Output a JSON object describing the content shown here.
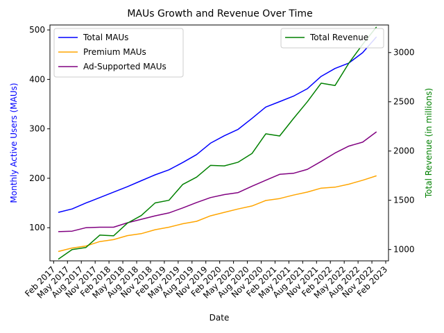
{
  "chart_data": {
    "type": "line",
    "title": "MAUs Growth and Revenue Over Time",
    "xlabel": "Date",
    "ylabel_left": "Monthly Active Users (MAUs)",
    "ylabel_right": "Total Revenue (in millions)",
    "x_ticks": [
      "Feb 2017",
      "May 2017",
      "Aug 2017",
      "Nov 2017",
      "Feb 2018",
      "May 2018",
      "Aug 2018",
      "Nov 2018",
      "Feb 2019",
      "May 2019",
      "Aug 2019",
      "Nov 2019",
      "Feb 2020",
      "May 2020",
      "Aug 2020",
      "Nov 2020",
      "Feb 2021",
      "May 2021",
      "Aug 2021",
      "Nov 2021",
      "Feb 2022",
      "May 2022",
      "Aug 2022",
      "Nov 2022",
      "Feb 2023"
    ],
    "x": [
      "Mar 2017",
      "Jun 2017",
      "Sep 2017",
      "Dec 2017",
      "Mar 2018",
      "Jun 2018",
      "Sep 2018",
      "Dec 2018",
      "Mar 2019",
      "Jun 2019",
      "Sep 2019",
      "Dec 2019",
      "Mar 2020",
      "Jun 2020",
      "Sep 2020",
      "Dec 2020",
      "Mar 2021",
      "Jun 2021",
      "Sep 2021",
      "Dec 2021",
      "Mar 2022",
      "Jun 2022",
      "Sep 2022",
      "Dec 2022"
    ],
    "ylim_left": [
      33,
      510
    ],
    "yticks_left": [
      100,
      200,
      300,
      400,
      500
    ],
    "ylim_right": [
      885,
      3280
    ],
    "yticks_right": [
      1000,
      1500,
      2000,
      2500,
      3000
    ],
    "series": [
      {
        "name": "Total MAUs",
        "axis": "left",
        "color": "#0000ff",
        "values": [
          131,
          138,
          150,
          161,
          172,
          183,
          195,
          207,
          217,
          232,
          248,
          271,
          286,
          299,
          321,
          344,
          355,
          366,
          381,
          406,
          422,
          433,
          454,
          486
        ]
      },
      {
        "name": "Premium MAUs",
        "axis": "left",
        "color": "#ffa500",
        "values": [
          52,
          59,
          63,
          72,
          76,
          84,
          88,
          96,
          101,
          108,
          113,
          124,
          131,
          138,
          144,
          155,
          159,
          166,
          172,
          180,
          182,
          188,
          196,
          205
        ]
      },
      {
        "name": "Ad-Supported MAUs",
        "axis": "left",
        "color": "#800080",
        "values": [
          92,
          93,
          100,
          101,
          101,
          110,
          117,
          124,
          130,
          140,
          151,
          161,
          167,
          171,
          184,
          196,
          208,
          210,
          218,
          234,
          251,
          265,
          273,
          294
        ]
      },
      {
        "name": "Total Revenue",
        "axis": "right",
        "color": "#008000",
        "values": [
          902,
          1000,
          1021,
          1146,
          1139,
          1268,
          1345,
          1473,
          1500,
          1661,
          1735,
          1854,
          1849,
          1887,
          1975,
          2175,
          2153,
          2330,
          2500,
          2689,
          2665,
          2892,
          3084,
          3260
        ]
      }
    ],
    "legend_left": "upper left",
    "legend_right": "upper right",
    "grid": false
  }
}
